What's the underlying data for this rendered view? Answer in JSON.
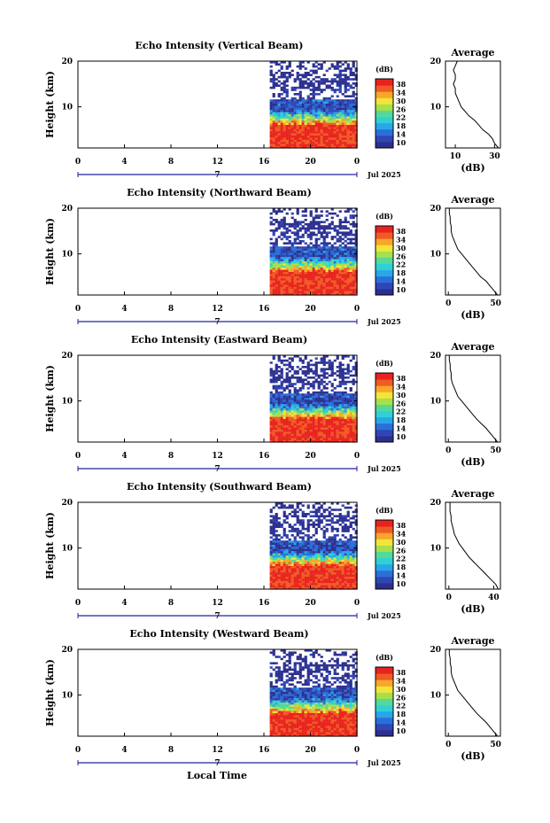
{
  "colors": {
    "colormap": [
      "#2c2f8e",
      "#2f46b4",
      "#2a6fd8",
      "#29a6e8",
      "#2fd1d6",
      "#54d99a",
      "#a6e04a",
      "#f2e53a",
      "#f9a62a",
      "#f05a24",
      "#e8231f"
    ],
    "frame": "#000000",
    "axis_accent": "#2020a0"
  },
  "figure": {
    "xlabel": "Local Time",
    "date_label": "Jul 2025",
    "date_day": "7",
    "colorbar_unit": "(dB)",
    "avg_title": "Average",
    "avg_xlabel": "(dB)",
    "ylabel": "Height (km)"
  },
  "chart_data": [
    {
      "type": "heatmap",
      "title": "Echo Intensity (Vertical Beam)",
      "ylabel": "Height (km)",
      "xlabel": "Local Time",
      "x_ticks": [
        "0",
        "4",
        "8",
        "12",
        "16",
        "20",
        "0"
      ],
      "xlim": [
        0,
        24
      ],
      "ylim": [
        1,
        20
      ],
      "y_ticks": [
        "20",
        "10"
      ],
      "data_start_hour": 16.5,
      "colorbar": {
        "label": "(dB)",
        "ticks": [
          "38",
          "34",
          "30",
          "26",
          "22",
          "18",
          "14",
          "10"
        ],
        "range": [
          10,
          38
        ]
      },
      "profile": {
        "title": "Average",
        "xlabel": "(dB)",
        "xticks": [
          10,
          30
        ],
        "xlim": [
          5,
          33
        ],
        "heights": [
          1,
          2,
          3,
          4,
          5,
          6,
          7,
          8,
          9,
          10,
          11,
          12,
          13,
          14,
          15,
          16,
          17,
          18,
          19,
          20
        ],
        "values": [
          32,
          30,
          29,
          27,
          24,
          22,
          20,
          17,
          15,
          13,
          12,
          11,
          10,
          10,
          9,
          10,
          10,
          9,
          10,
          11
        ]
      }
    },
    {
      "type": "heatmap",
      "title": "Echo Intensity (Northward Beam)",
      "ylabel": "Height (km)",
      "xlabel": "Local Time",
      "x_ticks": [
        "0",
        "4",
        "8",
        "12",
        "16",
        "20",
        "0"
      ],
      "xlim": [
        0,
        24
      ],
      "ylim": [
        1,
        20
      ],
      "y_ticks": [
        "20",
        "10"
      ],
      "data_start_hour": 16.5,
      "colorbar": {
        "label": "(dB)",
        "ticks": [
          "38",
          "34",
          "30",
          "26",
          "22",
          "18",
          "14",
          "10"
        ],
        "range": [
          10,
          38
        ]
      },
      "profile": {
        "title": "Average",
        "xlabel": "(dB)",
        "xticks": [
          0,
          50
        ],
        "xlim": [
          -3,
          55
        ],
        "heights": [
          1,
          2,
          3,
          4,
          5,
          6,
          7,
          8,
          9,
          10,
          11,
          12,
          13,
          14,
          15,
          16,
          17,
          18,
          19,
          20
        ],
        "values": [
          52,
          48,
          44,
          40,
          34,
          30,
          26,
          22,
          18,
          14,
          10,
          8,
          6,
          4,
          3,
          3,
          2,
          2,
          1,
          1
        ]
      }
    },
    {
      "type": "heatmap",
      "title": "Echo Intensity (Eastward Beam)",
      "ylabel": "Height (km)",
      "xlabel": "Local Time",
      "x_ticks": [
        "0",
        "4",
        "8",
        "12",
        "16",
        "20",
        "0"
      ],
      "xlim": [
        0,
        24
      ],
      "ylim": [
        1,
        20
      ],
      "y_ticks": [
        "20",
        "10"
      ],
      "data_start_hour": 16.5,
      "colorbar": {
        "label": "(dB)",
        "ticks": [
          "38",
          "34",
          "30",
          "26",
          "22",
          "18",
          "14",
          "10"
        ],
        "range": [
          10,
          38
        ]
      },
      "profile": {
        "title": "Average",
        "xlabel": "(dB)",
        "xticks": [
          0,
          50
        ],
        "xlim": [
          -3,
          55
        ],
        "heights": [
          1,
          2,
          3,
          4,
          5,
          6,
          7,
          8,
          9,
          10,
          11,
          12,
          13,
          14,
          15,
          16,
          17,
          18,
          19,
          20
        ],
        "values": [
          52,
          48,
          44,
          40,
          35,
          30,
          26,
          22,
          18,
          14,
          10,
          8,
          6,
          4,
          3,
          3,
          2,
          2,
          1,
          1
        ]
      }
    },
    {
      "type": "heatmap",
      "title": "Echo Intensity (Southward Beam)",
      "ylabel": "Height (km)",
      "xlabel": "Local Time",
      "x_ticks": [
        "0",
        "4",
        "8",
        "12",
        "16",
        "20",
        "0"
      ],
      "xlim": [
        0,
        24
      ],
      "ylim": [
        1,
        20
      ],
      "y_ticks": [
        "20",
        "10"
      ],
      "data_start_hour": 16.5,
      "colorbar": {
        "label": "(dB)",
        "ticks": [
          "38",
          "34",
          "30",
          "26",
          "22",
          "18",
          "14",
          "10"
        ],
        "range": [
          10,
          38
        ]
      },
      "profile": {
        "title": "Average",
        "xlabel": "(dB)",
        "xticks": [
          0,
          40
        ],
        "xlim": [
          -3,
          46
        ],
        "heights": [
          1,
          2,
          3,
          4,
          5,
          6,
          7,
          8,
          9,
          10,
          11,
          12,
          13,
          14,
          15,
          16,
          17,
          18,
          19,
          20
        ],
        "values": [
          44,
          42,
          38,
          34,
          30,
          26,
          22,
          18,
          15,
          12,
          9,
          7,
          5,
          4,
          3,
          2,
          2,
          1,
          1,
          1
        ]
      }
    },
    {
      "type": "heatmap",
      "title": "Echo Intensity (Westward Beam)",
      "ylabel": "Height (km)",
      "xlabel": "Local Time",
      "x_ticks": [
        "0",
        "4",
        "8",
        "12",
        "16",
        "20",
        "0"
      ],
      "xlim": [
        0,
        24
      ],
      "ylim": [
        1,
        20
      ],
      "y_ticks": [
        "20",
        "10"
      ],
      "data_start_hour": 16.5,
      "colorbar": {
        "label": "(dB)",
        "ticks": [
          "38",
          "34",
          "30",
          "26",
          "22",
          "18",
          "14",
          "10"
        ],
        "range": [
          10,
          38
        ]
      },
      "profile": {
        "title": "Average",
        "xlabel": "(dB)",
        "xticks": [
          0,
          50
        ],
        "xlim": [
          -3,
          55
        ],
        "heights": [
          1,
          2,
          3,
          4,
          5,
          6,
          7,
          8,
          9,
          10,
          11,
          12,
          13,
          14,
          15,
          16,
          17,
          18,
          19,
          20
        ],
        "values": [
          52,
          48,
          44,
          40,
          35,
          30,
          26,
          22,
          18,
          14,
          10,
          8,
          6,
          4,
          3,
          3,
          2,
          2,
          1,
          1
        ]
      }
    }
  ]
}
